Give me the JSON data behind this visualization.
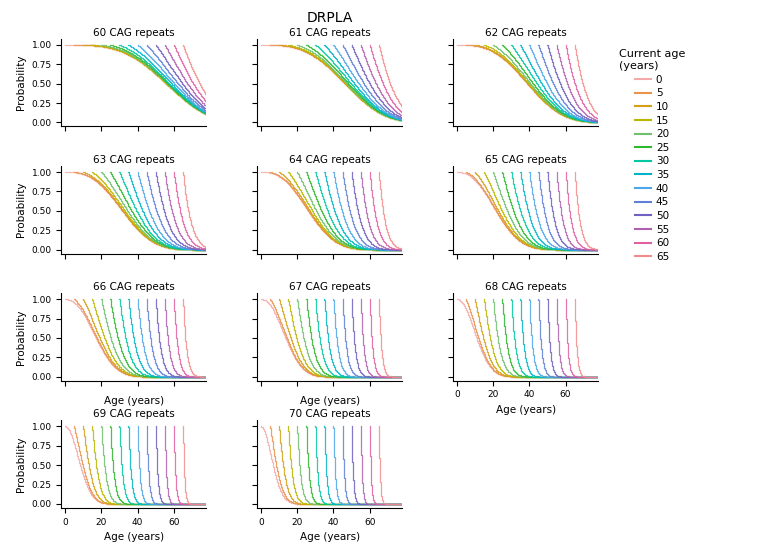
{
  "title": "DRPLA",
  "subtitle": "",
  "repeats": [
    60,
    61,
    62,
    63,
    64,
    65,
    66,
    67,
    68,
    69,
    70
  ],
  "grid_shape": [
    4,
    3
  ],
  "ages": [
    0,
    5,
    10,
    15,
    20,
    25,
    30,
    35,
    40,
    45,
    50,
    55,
    60,
    65
  ],
  "age_colors": [
    "#f28c8c",
    "#e8944a",
    "#d4a017",
    "#b8b800",
    "#6fbf6f",
    "#2db82d",
    "#00c8a0",
    "#00b4c8",
    "#4da6e8",
    "#6080d8",
    "#7060c0",
    "#b060b0",
    "#e060a0",
    "#f08080"
  ],
  "xlabel": "Age (years)",
  "ylabel": "Probability",
  "yticks": [
    0.0,
    0.25,
    0.5,
    0.75,
    1.0
  ],
  "xticks": [
    0,
    20,
    40,
    60
  ],
  "xlim": [
    -2,
    78
  ],
  "ylim": [
    -0.05,
    1.08
  ],
  "legend_title": "Current age\n(years)"
}
